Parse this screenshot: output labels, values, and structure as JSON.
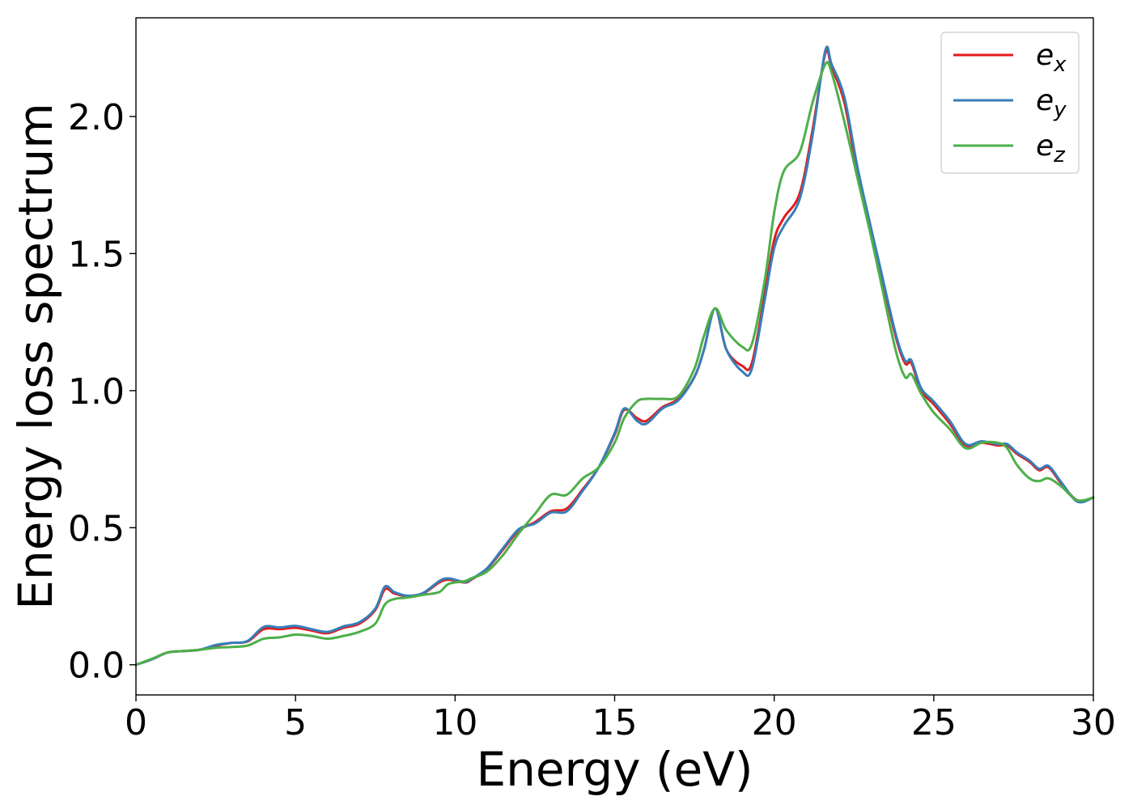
{
  "chart_data": {
    "type": "line",
    "title": "",
    "xlabel": "Energy (eV)",
    "ylabel": "Energy loss spectrum",
    "xlim": [
      0,
      30
    ],
    "ylim": [
      -0.11,
      2.36
    ],
    "xticks": [
      0,
      5,
      10,
      15,
      20,
      25,
      30
    ],
    "xtick_labels": [
      "0",
      "5",
      "10",
      "15",
      "20",
      "25",
      "30"
    ],
    "yticks": [
      0.0,
      0.5,
      1.0,
      1.5,
      2.0
    ],
    "ytick_labels": [
      "0.0",
      "0.5",
      "1.0",
      "1.5",
      "2.0"
    ],
    "grid": false,
    "legend_position": "top-right",
    "x": [
      0,
      0.5,
      1,
      1.5,
      2,
      2.5,
      3,
      3.5,
      4,
      4.5,
      5,
      5.5,
      6,
      6.5,
      7,
      7.5,
      7.8,
      8.1,
      8.5,
      9,
      9.5,
      9.8,
      10.3,
      10.5,
      11,
      11.5,
      12,
      12.5,
      13,
      13.5,
      14,
      14.5,
      15,
      15.3,
      15.7,
      16,
      16.5,
      17,
      17.5,
      17.8,
      18.15,
      18.5,
      19,
      19.3,
      19.7,
      20,
      20.3,
      20.8,
      21.2,
      21.6,
      21.8,
      22.2,
      22.6,
      23,
      23.3,
      23.8,
      24.1,
      24.3,
      24.6,
      25,
      25.5,
      26,
      26.5,
      27,
      27.3,
      27.6,
      28,
      28.3,
      28.6,
      29,
      29.5,
      30
    ],
    "series": [
      {
        "name": "e_x",
        "name_base": "e",
        "name_sub": "x",
        "color": "#e41a1c",
        "values": [
          0,
          0.02,
          0.045,
          0.05,
          0.055,
          0.07,
          0.08,
          0.085,
          0.13,
          0.13,
          0.135,
          0.125,
          0.115,
          0.135,
          0.15,
          0.2,
          0.275,
          0.26,
          0.25,
          0.26,
          0.3,
          0.31,
          0.3,
          0.31,
          0.35,
          0.42,
          0.49,
          0.52,
          0.56,
          0.57,
          0.64,
          0.72,
          0.84,
          0.93,
          0.9,
          0.89,
          0.94,
          0.97,
          1.05,
          1.15,
          1.3,
          1.15,
          1.09,
          1.1,
          1.35,
          1.55,
          1.63,
          1.72,
          1.95,
          2.23,
          2.18,
          2.05,
          1.8,
          1.6,
          1.45,
          1.2,
          1.1,
          1.1,
          1.0,
          0.95,
          0.88,
          0.8,
          0.81,
          0.8,
          0.8,
          0.77,
          0.74,
          0.71,
          0.72,
          0.66,
          0.6,
          0.61
        ]
      },
      {
        "name": "e_y",
        "name_base": "e",
        "name_sub": "y",
        "color": "#377eb8",
        "values": [
          0,
          0.02,
          0.045,
          0.05,
          0.055,
          0.072,
          0.08,
          0.087,
          0.138,
          0.136,
          0.142,
          0.13,
          0.12,
          0.14,
          0.155,
          0.205,
          0.285,
          0.265,
          0.252,
          0.262,
          0.305,
          0.315,
          0.302,
          0.312,
          0.352,
          0.425,
          0.495,
          0.515,
          0.555,
          0.56,
          0.635,
          0.72,
          0.845,
          0.935,
          0.89,
          0.88,
          0.935,
          0.965,
          1.05,
          1.15,
          1.3,
          1.15,
          1.07,
          1.08,
          1.33,
          1.52,
          1.6,
          1.7,
          1.93,
          2.24,
          2.19,
          2.07,
          1.82,
          1.61,
          1.46,
          1.21,
          1.11,
          1.11,
          1.01,
          0.96,
          0.89,
          0.805,
          0.815,
          0.805,
          0.805,
          0.775,
          0.745,
          0.715,
          0.725,
          0.665,
          0.595,
          0.61
        ]
      },
      {
        "name": "e_z",
        "name_base": "e",
        "name_sub": "z",
        "color": "#4daf4a",
        "values": [
          0,
          0.022,
          0.045,
          0.05,
          0.055,
          0.062,
          0.065,
          0.07,
          0.095,
          0.1,
          0.11,
          0.105,
          0.095,
          0.105,
          0.12,
          0.15,
          0.22,
          0.24,
          0.245,
          0.255,
          0.265,
          0.295,
          0.305,
          0.315,
          0.34,
          0.4,
          0.48,
          0.55,
          0.62,
          0.62,
          0.68,
          0.72,
          0.81,
          0.9,
          0.96,
          0.97,
          0.97,
          0.98,
          1.08,
          1.2,
          1.3,
          1.22,
          1.16,
          1.17,
          1.4,
          1.65,
          1.8,
          1.87,
          2.05,
          2.19,
          2.16,
          1.98,
          1.78,
          1.58,
          1.42,
          1.15,
          1.05,
          1.06,
          0.99,
          0.92,
          0.86,
          0.79,
          0.81,
          0.81,
          0.79,
          0.73,
          0.68,
          0.67,
          0.68,
          0.65,
          0.6,
          0.61
        ]
      }
    ]
  }
}
